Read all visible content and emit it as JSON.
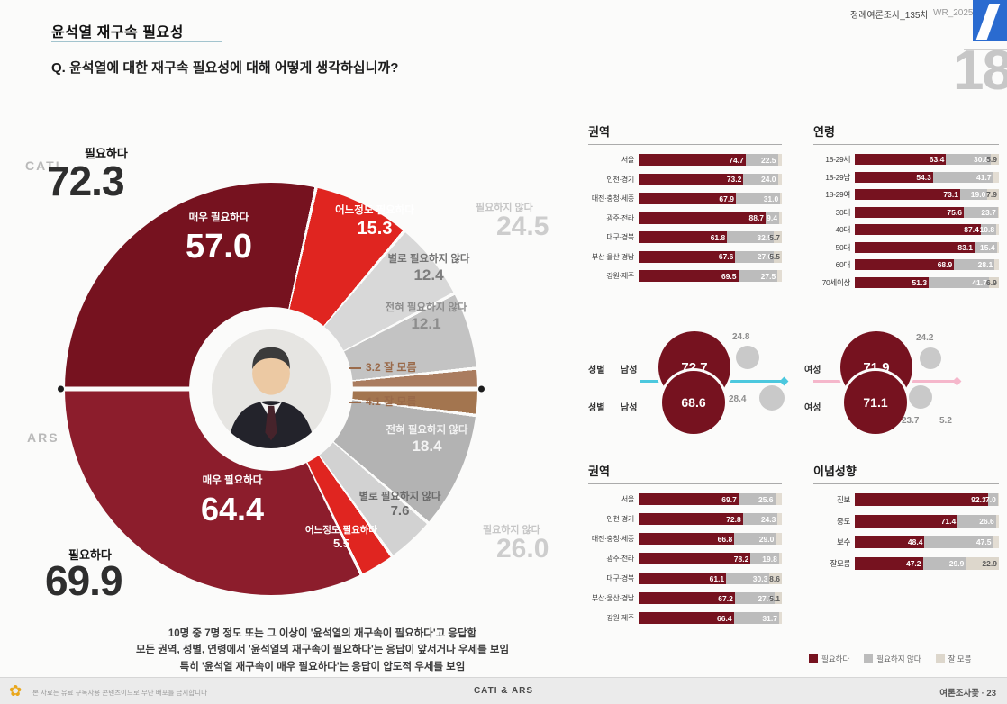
{
  "header": {
    "title": "윤석열 재구속 필요성",
    "question": "Q. 윤석열에 대한 재구속 필요성에 대해 어떻게 생각하십니까?",
    "survey_label": "정례여론조사_135차",
    "survey_code": "WR_202506_",
    "page_number": "18"
  },
  "donut": {
    "cati": {
      "mode": "CATI",
      "summary_yes_label": "필요하다",
      "summary_yes": "72.3",
      "summary_no_label": "필요하지 않다",
      "summary_no": "24.5",
      "segments": [
        {
          "name": "매우 필요하다",
          "value": "57.0",
          "color": "#76121f"
        },
        {
          "name": "어느정도 필요하다",
          "value": "15.3",
          "color": "#e02520"
        },
        {
          "name": "별로 필요하지 않다",
          "value": "12.4",
          "color": "#d8d8d8"
        },
        {
          "name": "전혀 필요하지 않다",
          "value": "12.1",
          "color": "#c3c3c3"
        },
        {
          "name": "잘 모름",
          "value": "3.2",
          "color": "#aa7c5f"
        }
      ]
    },
    "ars": {
      "mode": "ARS",
      "summary_yes_label": "필요하다",
      "summary_yes": "69.9",
      "summary_no_label": "필요하지 않다",
      "summary_no": "26.0",
      "segments": [
        {
          "name": "잘 모름",
          "value": "4.1",
          "color": "#a3754f"
        },
        {
          "name": "전혀 필요하지 않다",
          "value": "18.4",
          "color": "#b3b3b3"
        },
        {
          "name": "별로 필요하지 않다",
          "value": "7.6",
          "color": "#d2d2d2"
        },
        {
          "name": "어느정도 필요하다",
          "value": "5.5",
          "color": "#e02520"
        },
        {
          "name": "매우 필요하다",
          "value": "64.4",
          "color": "#8c1d2c"
        }
      ]
    }
  },
  "panels": {
    "region_cati": {
      "title": "권역",
      "rows": [
        {
          "label": "서울",
          "yes": "74.7",
          "no": "22.5",
          "dk": ""
        },
        {
          "label": "인천·경기",
          "yes": "73.2",
          "no": "24.0",
          "dk": ""
        },
        {
          "label": "대전·충청·세종",
          "yes": "67.9",
          "no": "31.0",
          "dk": ""
        },
        {
          "label": "광주·전라",
          "yes": "88.7",
          "no": "9.4",
          "dk": ""
        },
        {
          "label": "대구·경북",
          "yes": "61.8",
          "no": "32.5",
          "dk": "5.7"
        },
        {
          "label": "부산·울산·경남",
          "yes": "67.6",
          "no": "27.0",
          "dk": "5.5"
        },
        {
          "label": "강원·제주",
          "yes": "69.5",
          "no": "27.5",
          "dk": ""
        }
      ]
    },
    "age_cati": {
      "title": "연령",
      "rows": [
        {
          "label": "18-29세",
          "yes": "63.4",
          "no": "30.8",
          "dk": "5.9"
        },
        {
          "label": "18-29남",
          "yes": "54.3",
          "no": "41.7",
          "dk": ""
        },
        {
          "label": "18-29여",
          "yes": "73.1",
          "no": "19.0",
          "dk": "7.9"
        },
        {
          "label": "30대",
          "yes": "75.6",
          "no": "23.7",
          "dk": ""
        },
        {
          "label": "40대",
          "yes": "87.4",
          "no": "10.8",
          "dk": ""
        },
        {
          "label": "50대",
          "yes": "83.1",
          "no": "15.4",
          "dk": ""
        },
        {
          "label": "60대",
          "yes": "68.9",
          "no": "28.1",
          "dk": ""
        },
        {
          "label": "70세이상",
          "yes": "51.3",
          "no": "41.7",
          "dk": "6.9"
        }
      ]
    },
    "region_ars": {
      "title": "권역",
      "rows": [
        {
          "label": "서울",
          "yes": "69.7",
          "no": "25.6",
          "dk": ""
        },
        {
          "label": "인천·경기",
          "yes": "72.8",
          "no": "24.3",
          "dk": ""
        },
        {
          "label": "대전·충청·세종",
          "yes": "66.8",
          "no": "29.0",
          "dk": ""
        },
        {
          "label": "광주·전라",
          "yes": "78.2",
          "no": "19.8",
          "dk": ""
        },
        {
          "label": "대구·경북",
          "yes": "61.1",
          "no": "30.3",
          "dk": "8.6"
        },
        {
          "label": "부산·울산·경남",
          "yes": "67.2",
          "no": "27.7",
          "dk": "5.1"
        },
        {
          "label": "강원·제주",
          "yes": "66.4",
          "no": "31.7",
          "dk": ""
        }
      ]
    },
    "ideology_ars": {
      "title": "이념성향",
      "rows": [
        {
          "label": "진보",
          "yes": "92.3",
          "no": "7.0",
          "dk": ""
        },
        {
          "label": "중도",
          "yes": "71.4",
          "no": "26.6",
          "dk": ""
        },
        {
          "label": "보수",
          "yes": "48.4",
          "no": "47.5",
          "dk": ""
        },
        {
          "label": "잘모름",
          "yes": "47.2",
          "no": "29.9",
          "dk": "22.9"
        }
      ]
    }
  },
  "gender": {
    "section_label": "성별",
    "male": {
      "label": "남성",
      "line_color": "#4cc8de",
      "rows": [
        {
          "yes": "72.7",
          "no": "24.8",
          "dk": ""
        },
        {
          "yes": "68.6",
          "no": "28.4",
          "dk": ""
        }
      ]
    },
    "female": {
      "label": "여성",
      "line_color": "#f5b7cb",
      "rows": [
        {
          "yes": "71.9",
          "no": "24.2",
          "dk": ""
        },
        {
          "yes": "71.1",
          "no": "23.7",
          "dk": "5.2"
        }
      ]
    }
  },
  "legend": {
    "items": [
      {
        "label": "필요하다",
        "color": "#76121f"
      },
      {
        "label": "필요하지 않다",
        "color": "#bcbcbc"
      },
      {
        "label": "잘 모름",
        "color": "#ddd7cc"
      }
    ]
  },
  "notes": [
    "10명 중 7명 정도 또는 그 이상이 '윤석열의 재구속이 필요하다'고 응답함",
    "모든 권역, 성별, 연령에서 '윤석열의 재구속이 필요하다'는 응답이 앞서거나 우세를 보임",
    "특히 '윤석열 재구속이 매우 필요하다'는 응답이 압도적 우세를 보임"
  ],
  "footer": {
    "left": "본 자료는 유료 구독자용 콘텐츠이므로 무단 배포를 금지합니다",
    "center": "CATI & ARS",
    "right": "여론조사꽃 · 23"
  },
  "chart_data": [
    {
      "type": "pie",
      "title": "윤석열 재구속 필요성 (CATI)",
      "labels": [
        "매우 필요하다",
        "어느정도 필요하다",
        "별로 필요하지 않다",
        "전혀 필요하지 않다",
        "잘 모름"
      ],
      "values": [
        57.0,
        15.3,
        12.4,
        12.1,
        3.2
      ],
      "summary": {
        "필요하다": 72.3,
        "필요하지 않다": 24.5
      }
    },
    {
      "type": "pie",
      "title": "윤석열 재구속 필요성 (ARS)",
      "labels": [
        "매우 필요하다",
        "어느정도 필요하다",
        "별로 필요하지 않다",
        "전혀 필요하지 않다",
        "잘 모름"
      ],
      "values": [
        64.4,
        5.5,
        7.6,
        18.4,
        4.1
      ],
      "summary": {
        "필요하다": 69.9,
        "필요하지 않다": 26.0
      }
    },
    {
      "type": "bar",
      "title": "권역 (CATI)",
      "categories": [
        "서울",
        "인천·경기",
        "대전·충청·세종",
        "광주·전라",
        "대구·경북",
        "부산·울산·경남",
        "강원·제주"
      ],
      "series": [
        {
          "name": "필요하다",
          "values": [
            74.7,
            73.2,
            67.9,
            88.7,
            61.8,
            67.6,
            69.5
          ]
        },
        {
          "name": "필요하지 않다",
          "values": [
            22.5,
            24.0,
            31.0,
            9.4,
            32.5,
            27.0,
            27.5
          ]
        },
        {
          "name": "잘 모름",
          "values": [
            null,
            null,
            null,
            null,
            5.7,
            5.5,
            null
          ]
        }
      ]
    },
    {
      "type": "bar",
      "title": "연령 (CATI)",
      "categories": [
        "18-29세",
        "18-29남",
        "18-29여",
        "30대",
        "40대",
        "50대",
        "60대",
        "70세이상"
      ],
      "series": [
        {
          "name": "필요하다",
          "values": [
            63.4,
            54.3,
            73.1,
            75.6,
            87.4,
            83.1,
            68.9,
            51.3
          ]
        },
        {
          "name": "필요하지 않다",
          "values": [
            30.8,
            41.7,
            19.0,
            23.7,
            10.8,
            15.4,
            28.1,
            41.7
          ]
        },
        {
          "name": "잘 모름",
          "values": [
            5.9,
            null,
            7.9,
            null,
            null,
            null,
            null,
            6.9
          ]
        }
      ]
    },
    {
      "type": "bar",
      "title": "성별 (CATI/ARS)",
      "categories": [
        "남성 CATI",
        "남성 ARS",
        "여성 CATI",
        "여성 ARS"
      ],
      "series": [
        {
          "name": "필요하다",
          "values": [
            72.7,
            68.6,
            71.9,
            71.1
          ]
        },
        {
          "name": "필요하지 않다",
          "values": [
            24.8,
            28.4,
            24.2,
            23.7
          ]
        },
        {
          "name": "잘 모름",
          "values": [
            null,
            null,
            null,
            5.2
          ]
        }
      ]
    },
    {
      "type": "bar",
      "title": "권역 (ARS)",
      "categories": [
        "서울",
        "인천·경기",
        "대전·충청·세종",
        "광주·전라",
        "대구·경북",
        "부산·울산·경남",
        "강원·제주"
      ],
      "series": [
        {
          "name": "필요하다",
          "values": [
            69.7,
            72.8,
            66.8,
            78.2,
            61.1,
            67.2,
            66.4
          ]
        },
        {
          "name": "필요하지 않다",
          "values": [
            25.6,
            24.3,
            29.0,
            19.8,
            30.3,
            27.7,
            31.7
          ]
        },
        {
          "name": "잘 모름",
          "values": [
            null,
            null,
            null,
            null,
            8.6,
            5.1,
            null
          ]
        }
      ]
    },
    {
      "type": "bar",
      "title": "이념성향 (ARS)",
      "categories": [
        "진보",
        "중도",
        "보수",
        "잘모름"
      ],
      "series": [
        {
          "name": "필요하다",
          "values": [
            92.3,
            71.4,
            48.4,
            47.2
          ]
        },
        {
          "name": "필요하지 않다",
          "values": [
            7.0,
            26.6,
            47.5,
            29.9
          ]
        },
        {
          "name": "잘 모름",
          "values": [
            null,
            null,
            null,
            22.9
          ]
        }
      ]
    }
  ]
}
